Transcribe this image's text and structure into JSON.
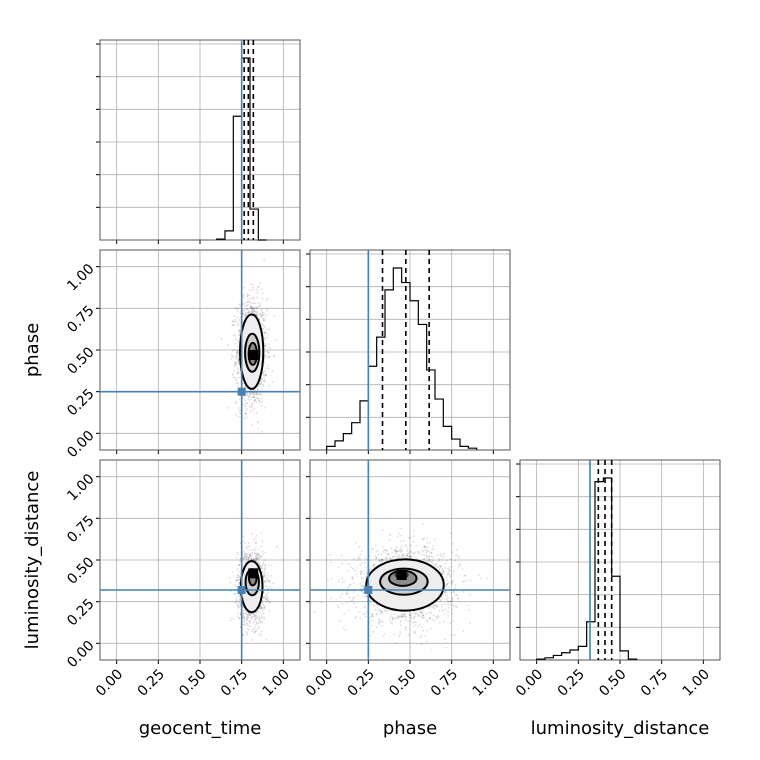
{
  "chart_data": {
    "type": "corner",
    "parameters": [
      "geocent_time",
      "phase",
      "luminosity_distance"
    ],
    "axis_labels": {
      "geocent_time": "geocent_time",
      "phase": "phase",
      "luminosity_distance": "luminosity_distance"
    },
    "range": [
      -0.1,
      1.1
    ],
    "ticks": [
      0.0,
      0.25,
      0.5,
      0.75,
      1.0
    ],
    "tick_labels": [
      "0.00",
      "0.25",
      "0.50",
      "0.75",
      "1.00"
    ],
    "grid": true,
    "truths": {
      "geocent_time": 0.75,
      "phase": 0.25,
      "luminosity_distance": 0.32
    },
    "colors": {
      "truth": "#4682b4",
      "contour": "#000000",
      "grid": "#b0b0b0"
    },
    "marginals": {
      "geocent_time": {
        "bin_edges": [
          0.6,
          0.65,
          0.7,
          0.75,
          0.8,
          0.85,
          0.9
        ],
        "counts": [
          0.005,
          0.05,
          0.68,
          1.0,
          0.17,
          0.0
        ],
        "quantiles": [
          0.765,
          0.79,
          0.82
        ]
      },
      "phase": {
        "bin_edges": [
          0.0,
          0.05,
          0.1,
          0.15,
          0.2,
          0.25,
          0.3,
          0.35,
          0.4,
          0.45,
          0.5,
          0.55,
          0.6,
          0.65,
          0.7,
          0.75,
          0.8,
          0.85,
          0.9
        ],
        "counts": [
          0.02,
          0.05,
          0.09,
          0.15,
          0.27,
          0.46,
          0.62,
          0.88,
          1.0,
          0.92,
          0.82,
          0.69,
          0.44,
          0.28,
          0.13,
          0.06,
          0.02,
          0.01
        ],
        "quantiles": [
          0.335,
          0.475,
          0.615
        ]
      },
      "luminosity_distance": {
        "bin_edges": [
          0.0,
          0.05,
          0.1,
          0.15,
          0.2,
          0.25,
          0.3,
          0.35,
          0.4,
          0.45,
          0.5,
          0.55,
          0.6
        ],
        "counts": [
          0.005,
          0.012,
          0.025,
          0.04,
          0.055,
          0.075,
          0.21,
          0.98,
          1.0,
          0.46,
          0.05,
          0.005
        ],
        "quantiles": [
          0.37,
          0.41,
          0.45
        ]
      }
    },
    "joint": [
      {
        "x": "geocent_time",
        "y": "phase",
        "center": [
          0.81,
          0.49
        ],
        "spread": [
          0.045,
          0.16
        ],
        "samples": 1400,
        "max_point": [
          0.82,
          0.47
        ],
        "contour_levels": [
          0.39,
          0.86,
          0.99
        ],
        "fill_shades": [
          "#eeeeee",
          "#cfcfcf",
          "#8c8c8c",
          "#2d2d2d"
        ]
      },
      {
        "x": "geocent_time",
        "y": "luminosity_distance",
        "center": [
          0.81,
          0.34
        ],
        "spread": [
          0.042,
          0.11
        ],
        "samples": 1300,
        "max_point": [
          0.82,
          0.42
        ],
        "contour_levels": [
          0.39,
          0.86,
          0.99
        ],
        "fill_shades": [
          "#eeeeee",
          "#cfcfcf",
          "#8c8c8c",
          "#2d2d2d"
        ]
      },
      {
        "x": "phase",
        "y": "luminosity_distance",
        "center": [
          0.47,
          0.35
        ],
        "spread": [
          0.15,
          0.11
        ],
        "samples": 1900,
        "max_point": [
          0.45,
          0.41
        ],
        "contour_levels": [
          0.39,
          0.86,
          0.99
        ],
        "fill_shades": [
          "#eeeeee",
          "#cfcfcf",
          "#8c8c8c",
          "#2d2d2d"
        ]
      }
    ]
  }
}
